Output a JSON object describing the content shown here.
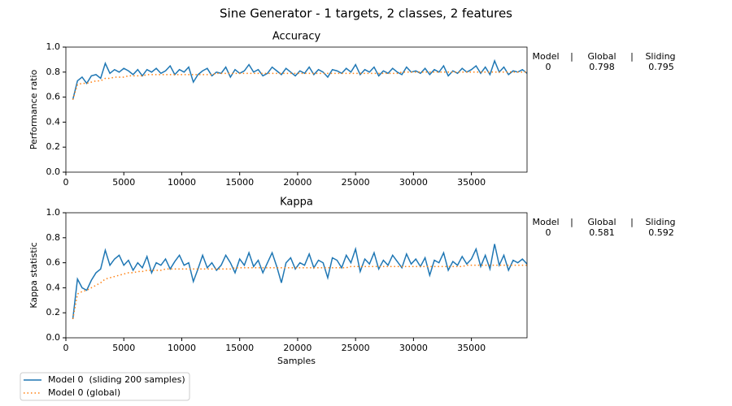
{
  "title": "Sine Generator - 1 targets, 2 classes, 2 features",
  "legend": {
    "location": "lower left"
  },
  "chart_data": [
    {
      "type": "line",
      "title": "Accuracy",
      "y_label": "Performance ratio",
      "x": [
        600,
        1000,
        1400,
        1800,
        2200,
        2600,
        3000,
        3400,
        3800,
        4200,
        4600,
        5000,
        5400,
        5800,
        6200,
        6600,
        7000,
        7400,
        7800,
        8200,
        8600,
        9000,
        9400,
        9800,
        10200,
        10600,
        11000,
        11400,
        11800,
        12200,
        12600,
        13000,
        13400,
        13800,
        14200,
        14600,
        15000,
        15400,
        15800,
        16200,
        16600,
        17000,
        17400,
        17800,
        18200,
        18600,
        19000,
        19400,
        19800,
        20200,
        20600,
        21000,
        21400,
        21800,
        22200,
        22600,
        23000,
        23400,
        23800,
        24200,
        24600,
        25000,
        25400,
        25800,
        26200,
        26600,
        27000,
        27400,
        27800,
        28200,
        28600,
        29000,
        29400,
        29800,
        30200,
        30600,
        31000,
        31400,
        31800,
        32200,
        32600,
        33000,
        33400,
        33800,
        34200,
        34600,
        35000,
        35400,
        35800,
        36200,
        36600,
        37000,
        37400,
        37800,
        38200,
        38600,
        39000,
        39400,
        39800
      ],
      "series": [
        {
          "name": "Model 0  (sliding 200 samples)",
          "color": "#1f77b4",
          "style": "solid",
          "values": [
            0.58,
            0.73,
            0.76,
            0.71,
            0.77,
            0.78,
            0.75,
            0.87,
            0.79,
            0.82,
            0.8,
            0.83,
            0.81,
            0.78,
            0.82,
            0.77,
            0.82,
            0.8,
            0.83,
            0.79,
            0.81,
            0.85,
            0.78,
            0.82,
            0.8,
            0.84,
            0.72,
            0.78,
            0.81,
            0.83,
            0.77,
            0.8,
            0.79,
            0.84,
            0.76,
            0.82,
            0.79,
            0.81,
            0.86,
            0.8,
            0.82,
            0.77,
            0.79,
            0.84,
            0.81,
            0.78,
            0.83,
            0.8,
            0.77,
            0.81,
            0.79,
            0.84,
            0.78,
            0.82,
            0.8,
            0.76,
            0.82,
            0.81,
            0.79,
            0.83,
            0.8,
            0.86,
            0.78,
            0.82,
            0.8,
            0.84,
            0.77,
            0.81,
            0.79,
            0.83,
            0.8,
            0.78,
            0.84,
            0.8,
            0.81,
            0.79,
            0.83,
            0.78,
            0.82,
            0.8,
            0.85,
            0.77,
            0.81,
            0.79,
            0.83,
            0.8,
            0.82,
            0.85,
            0.79,
            0.84,
            0.78,
            0.89,
            0.8,
            0.84,
            0.78,
            0.81,
            0.8,
            0.82,
            0.79
          ]
        },
        {
          "name": "Model 0 (global)",
          "color": "#ff7f0e",
          "style": "dotted",
          "values": [
            0.58,
            0.7,
            0.71,
            0.71,
            0.72,
            0.73,
            0.73,
            0.75,
            0.75,
            0.76,
            0.76,
            0.76,
            0.77,
            0.77,
            0.77,
            0.77,
            0.78,
            0.78,
            0.78,
            0.78,
            0.78,
            0.78,
            0.78,
            0.78,
            0.78,
            0.78,
            0.78,
            0.78,
            0.78,
            0.78,
            0.78,
            0.79,
            0.79,
            0.79,
            0.79,
            0.79,
            0.79,
            0.79,
            0.79,
            0.79,
            0.79,
            0.79,
            0.79,
            0.79,
            0.79,
            0.79,
            0.79,
            0.79,
            0.79,
            0.79,
            0.79,
            0.79,
            0.79,
            0.79,
            0.79,
            0.79,
            0.79,
            0.79,
            0.79,
            0.79,
            0.79,
            0.79,
            0.79,
            0.79,
            0.79,
            0.79,
            0.79,
            0.79,
            0.79,
            0.79,
            0.79,
            0.8,
            0.8,
            0.8,
            0.8,
            0.8,
            0.8,
            0.8,
            0.8,
            0.8,
            0.8,
            0.8,
            0.8,
            0.8,
            0.8,
            0.8,
            0.8,
            0.8,
            0.8,
            0.8,
            0.8,
            0.8,
            0.8,
            0.8,
            0.8,
            0.8,
            0.8,
            0.8,
            0.8
          ]
        }
      ],
      "xlim": [
        0,
        39800
      ],
      "xticks": [
        0,
        5000,
        10000,
        15000,
        20000,
        25000,
        30000,
        35000
      ],
      "ylim": [
        0,
        1
      ],
      "yticks": [
        {
          "value": 0,
          "label": "0.0"
        },
        0.2,
        0.4,
        0.6,
        0.8,
        {
          "value": 1,
          "label": "1.0"
        }
      ],
      "table": {
        "header": [
          "Model",
          "|",
          "Global",
          "|",
          "Sliding"
        ],
        "rows": [
          [
            "0",
            "0.798",
            "0.795"
          ]
        ]
      }
    },
    {
      "type": "line",
      "title": "Kappa",
      "y_label": "Kappa statistic",
      "x_label": "Samples",
      "x": [
        600,
        1000,
        1400,
        1800,
        2200,
        2600,
        3000,
        3400,
        3800,
        4200,
        4600,
        5000,
        5400,
        5800,
        6200,
        6600,
        7000,
        7400,
        7800,
        8200,
        8600,
        9000,
        9400,
        9800,
        10200,
        10600,
        11000,
        11400,
        11800,
        12200,
        12600,
        13000,
        13400,
        13800,
        14200,
        14600,
        15000,
        15400,
        15800,
        16200,
        16600,
        17000,
        17400,
        17800,
        18200,
        18600,
        19000,
        19400,
        19800,
        20200,
        20600,
        21000,
        21400,
        21800,
        22200,
        22600,
        23000,
        23400,
        23800,
        24200,
        24600,
        25000,
        25400,
        25800,
        26200,
        26600,
        27000,
        27400,
        27800,
        28200,
        28600,
        29000,
        29400,
        29800,
        30200,
        30600,
        31000,
        31400,
        31800,
        32200,
        32600,
        33000,
        33400,
        33800,
        34200,
        34600,
        35000,
        35400,
        35800,
        36200,
        36600,
        37000,
        37400,
        37800,
        38200,
        38600,
        39000,
        39400,
        39800
      ],
      "series": [
        {
          "name": "Model 0  (sliding 200 samples)",
          "color": "#1f77b4",
          "style": "solid",
          "values": [
            0.15,
            0.47,
            0.4,
            0.38,
            0.46,
            0.52,
            0.55,
            0.7,
            0.58,
            0.63,
            0.66,
            0.58,
            0.62,
            0.54,
            0.6,
            0.56,
            0.65,
            0.52,
            0.6,
            0.58,
            0.63,
            0.55,
            0.61,
            0.66,
            0.58,
            0.6,
            0.45,
            0.55,
            0.66,
            0.56,
            0.6,
            0.54,
            0.58,
            0.66,
            0.6,
            0.52,
            0.63,
            0.58,
            0.68,
            0.57,
            0.62,
            0.52,
            0.6,
            0.68,
            0.57,
            0.44,
            0.6,
            0.64,
            0.55,
            0.6,
            0.58,
            0.67,
            0.56,
            0.62,
            0.6,
            0.48,
            0.64,
            0.62,
            0.56,
            0.66,
            0.6,
            0.71,
            0.53,
            0.63,
            0.59,
            0.68,
            0.55,
            0.62,
            0.58,
            0.66,
            0.61,
            0.56,
            0.67,
            0.59,
            0.63,
            0.57,
            0.64,
            0.5,
            0.62,
            0.6,
            0.68,
            0.54,
            0.61,
            0.58,
            0.65,
            0.59,
            0.63,
            0.71,
            0.57,
            0.66,
            0.55,
            0.75,
            0.58,
            0.66,
            0.54,
            0.62,
            0.6,
            0.63,
            0.59
          ]
        },
        {
          "name": "Model 0 (global)",
          "color": "#ff7f0e",
          "style": "dotted",
          "values": [
            0.15,
            0.35,
            0.37,
            0.38,
            0.4,
            0.42,
            0.44,
            0.47,
            0.48,
            0.49,
            0.5,
            0.51,
            0.52,
            0.52,
            0.53,
            0.53,
            0.54,
            0.54,
            0.54,
            0.54,
            0.55,
            0.55,
            0.55,
            0.55,
            0.55,
            0.55,
            0.55,
            0.55,
            0.55,
            0.55,
            0.55,
            0.55,
            0.55,
            0.55,
            0.55,
            0.56,
            0.56,
            0.56,
            0.56,
            0.56,
            0.56,
            0.56,
            0.56,
            0.56,
            0.56,
            0.56,
            0.56,
            0.56,
            0.56,
            0.56,
            0.56,
            0.56,
            0.56,
            0.56,
            0.56,
            0.56,
            0.56,
            0.56,
            0.56,
            0.56,
            0.57,
            0.57,
            0.57,
            0.57,
            0.57,
            0.57,
            0.57,
            0.57,
            0.57,
            0.57,
            0.57,
            0.57,
            0.57,
            0.57,
            0.57,
            0.57,
            0.57,
            0.57,
            0.57,
            0.57,
            0.57,
            0.57,
            0.57,
            0.57,
            0.57,
            0.58,
            0.58,
            0.58,
            0.58,
            0.58,
            0.58,
            0.58,
            0.58,
            0.58,
            0.58,
            0.58,
            0.58,
            0.58,
            0.58
          ]
        }
      ],
      "xlim": [
        0,
        39800
      ],
      "xticks": [
        0,
        5000,
        10000,
        15000,
        20000,
        25000,
        30000,
        35000
      ],
      "ylim": [
        0,
        1
      ],
      "yticks": [
        {
          "value": 0,
          "label": "0.0"
        },
        0.2,
        0.4,
        0.6,
        0.8,
        {
          "value": 1,
          "label": "1.0"
        }
      ],
      "table": {
        "header": [
          "Model",
          "|",
          "Global",
          "|",
          "Sliding"
        ],
        "rows": [
          [
            "0",
            "0.581",
            "0.592"
          ]
        ]
      }
    }
  ]
}
